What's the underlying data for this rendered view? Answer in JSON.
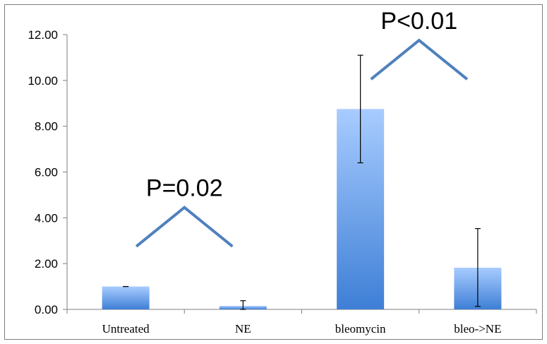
{
  "chart_data": {
    "type": "bar",
    "categories": [
      "Untreated",
      "NE",
      "bleomycin",
      "bleo->NE"
    ],
    "values": [
      1.0,
      0.15,
      8.75,
      1.82
    ],
    "errors_upper": [
      1.0,
      0.38,
      11.1,
      3.53
    ],
    "errors_lower": [
      1.0,
      0.0,
      6.4,
      0.13
    ],
    "ylim": [
      0,
      12
    ],
    "y_ticks": [
      "0.00",
      "2.00",
      "4.00",
      "6.00",
      "8.00",
      "10.00",
      "12.00"
    ],
    "y_tick_values": [
      0,
      2,
      4,
      6,
      8,
      10,
      12
    ],
    "grid": false,
    "legend": "none",
    "title": "",
    "xlabel": "",
    "ylabel": "",
    "annotations": [
      {
        "text": "P=0.02",
        "between": [
          0,
          1
        ],
        "peak_value": 4.45,
        "ends_value": 2.75
      },
      {
        "text": "P<0.01",
        "between": [
          2,
          3
        ],
        "peak_value": 11.75,
        "ends_value": 10.05
      }
    ],
    "colors": {
      "bar_top": "#a8ccff",
      "bar_bottom": "#3e7fd6",
      "bracket": "#4f81bd",
      "axis": "#808080"
    }
  }
}
